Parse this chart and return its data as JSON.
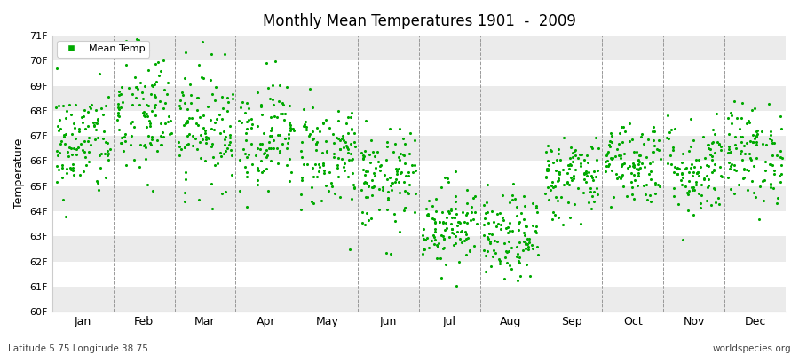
{
  "title": "Monthly Mean Temperatures 1901  -  2009",
  "ylabel": "Temperature",
  "subtitle_left": "Latitude 5.75 Longitude 38.75",
  "subtitle_right": "worldspecies.org",
  "ytick_labels": [
    "60F",
    "61F",
    "62F",
    "63F",
    "64F",
    "65F",
    "66F",
    "67F",
    "68F",
    "69F",
    "70F",
    "71F"
  ],
  "ytick_values": [
    60,
    61,
    62,
    63,
    64,
    65,
    66,
    67,
    68,
    69,
    70,
    71
  ],
  "months": [
    "Jan",
    "Feb",
    "Mar",
    "Apr",
    "May",
    "Jun",
    "Jul",
    "Aug",
    "Sep",
    "Oct",
    "Nov",
    "Dec"
  ],
  "dot_color": "#00aa00",
  "background_color": "#ffffff",
  "band_color": "#ebebeb",
  "legend_label": "Mean Temp",
  "n_years": 109,
  "monthly_means": [
    66.7,
    67.8,
    67.4,
    67.1,
    66.3,
    65.2,
    63.5,
    62.9,
    65.4,
    66.0,
    65.7,
    66.3
  ],
  "monthly_stds": [
    1.1,
    1.4,
    1.2,
    1.1,
    1.1,
    1.0,
    0.85,
    0.85,
    0.85,
    0.85,
    1.0,
    1.0
  ]
}
